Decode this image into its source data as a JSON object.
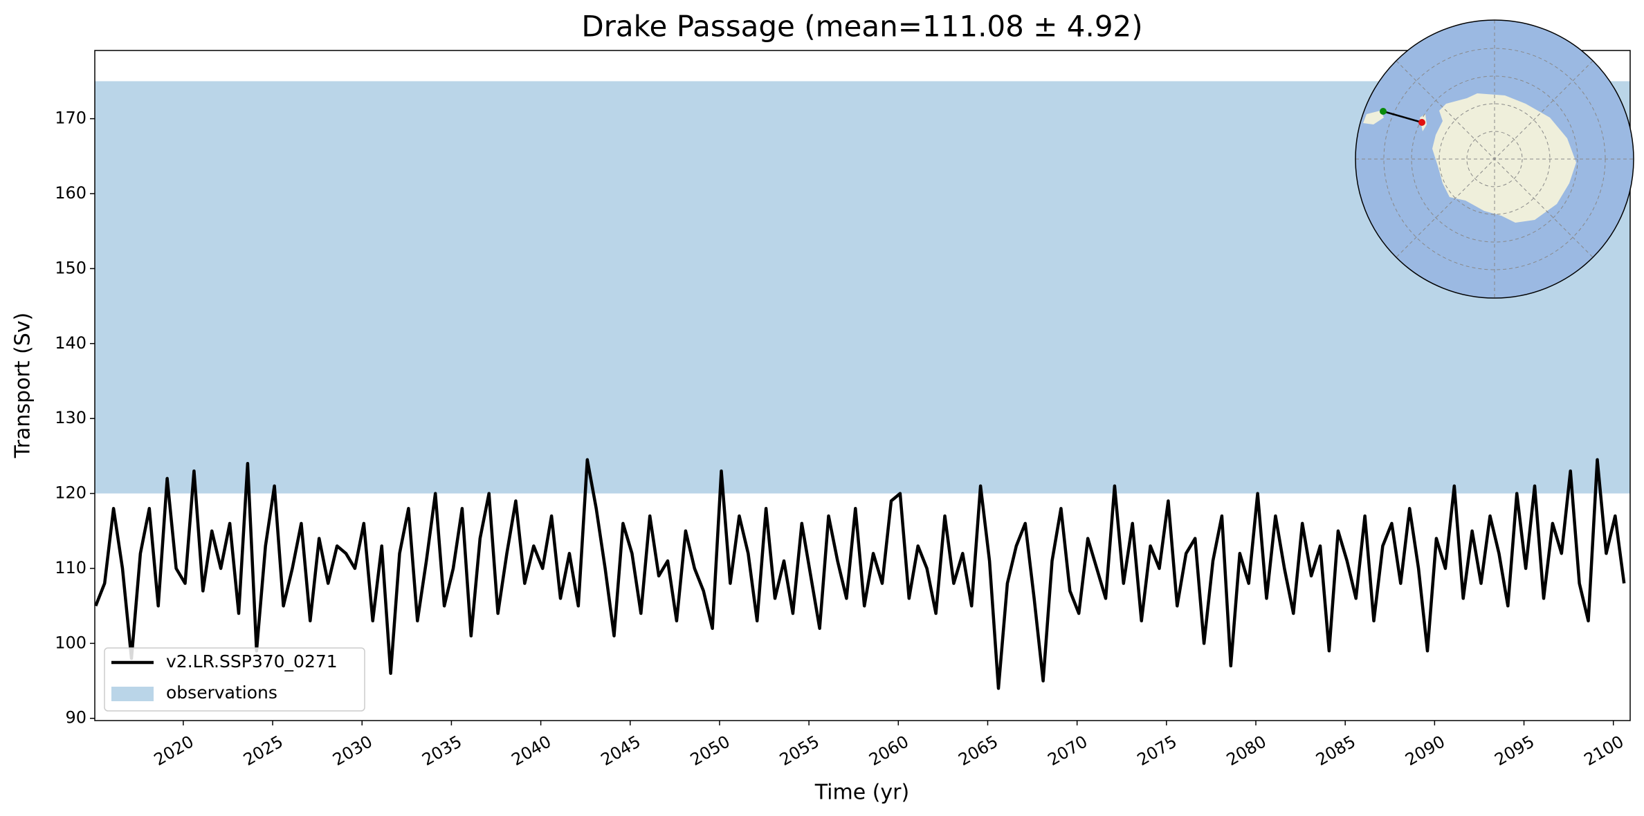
{
  "chart_data": {
    "type": "line",
    "title": "Drake Passage (mean=111.08 ± 4.92)",
    "xlabel": "Time (yr)",
    "ylabel": "Transport (Sv)",
    "xlim": [
      2015.05,
      2100.94
    ],
    "ylim": [
      89.7,
      179.1
    ],
    "xticks": [
      2020,
      2025,
      2030,
      2035,
      2040,
      2045,
      2050,
      2055,
      2060,
      2065,
      2070,
      2075,
      2080,
      2085,
      2090,
      2095,
      2100
    ],
    "yticks": [
      90,
      100,
      110,
      120,
      130,
      140,
      150,
      160,
      170
    ],
    "legend": "lower left",
    "band": {
      "name": "observations",
      "range": [
        120,
        175
      ],
      "color": "#bad5e8"
    },
    "x": [
      2015.1,
      2015.6,
      2016.1,
      2016.6,
      2017.1,
      2017.6,
      2018.1,
      2018.6,
      2019.1,
      2019.6,
      2020.1,
      2020.6,
      2021.1,
      2021.6,
      2022.1,
      2022.6,
      2023.1,
      2023.6,
      2024.1,
      2024.6,
      2025.1,
      2025.6,
      2026.1,
      2026.6,
      2027.1,
      2027.6,
      2028.1,
      2028.6,
      2029.1,
      2029.6,
      2030.1,
      2030.6,
      2031.1,
      2031.6,
      2032.1,
      2032.6,
      2033.1,
      2033.6,
      2034.1,
      2034.6,
      2035.1,
      2035.6,
      2036.1,
      2036.6,
      2037.1,
      2037.6,
      2038.1,
      2038.6,
      2039.1,
      2039.6,
      2040.1,
      2040.6,
      2041.1,
      2041.6,
      2042.1,
      2042.6,
      2043.1,
      2043.6,
      2044.1,
      2044.6,
      2045.1,
      2045.6,
      2046.1,
      2046.6,
      2047.1,
      2047.6,
      2048.1,
      2048.6,
      2049.1,
      2049.6,
      2050.1,
      2050.6,
      2051.1,
      2051.6,
      2052.1,
      2052.6,
      2053.1,
      2053.6,
      2054.1,
      2054.6,
      2055.1,
      2055.6,
      2056.1,
      2056.6,
      2057.1,
      2057.6,
      2058.1,
      2058.6,
      2059.1,
      2059.6,
      2060.1,
      2060.6,
      2061.1,
      2061.6,
      2062.1,
      2062.6,
      2063.1,
      2063.6,
      2064.1,
      2064.6,
      2065.1,
      2065.6,
      2066.1,
      2066.6,
      2067.1,
      2067.6,
      2068.1,
      2068.6,
      2069.1,
      2069.6,
      2070.1,
      2070.6,
      2071.1,
      2071.6,
      2072.1,
      2072.6,
      2073.1,
      2073.6,
      2074.1,
      2074.6,
      2075.1,
      2075.6,
      2076.1,
      2076.6,
      2077.1,
      2077.6,
      2078.1,
      2078.6,
      2079.1,
      2079.6,
      2080.1,
      2080.6,
      2081.1,
      2081.6,
      2082.1,
      2082.6,
      2083.1,
      2083.6,
      2084.1,
      2084.6,
      2085.1,
      2085.6,
      2086.1,
      2086.6,
      2087.1,
      2087.6,
      2088.1,
      2088.6,
      2089.1,
      2089.6,
      2090.1,
      2090.6,
      2091.1,
      2091.6,
      2092.1,
      2092.6,
      2093.1,
      2093.6,
      2094.1,
      2094.6,
      2095.1,
      2095.6,
      2096.1,
      2096.6,
      2097.1,
      2097.6,
      2098.1,
      2098.6,
      2099.1,
      2099.6,
      2100.1,
      2100.6
    ],
    "series": [
      {
        "name": "v2.LR.SSP370_0271",
        "color": "#000000",
        "values": [
          105,
          108,
          118,
          110,
          98,
          112,
          118,
          105,
          122,
          110,
          108,
          123,
          107,
          115,
          110,
          116,
          104,
          124,
          99,
          113,
          121,
          105,
          110,
          116,
          103,
          114,
          108,
          113,
          112,
          110,
          116,
          103,
          113,
          96,
          112,
          118,
          103,
          111,
          120,
          105,
          110,
          118,
          101,
          114,
          120,
          104,
          112,
          119,
          108,
          113,
          110,
          117,
          106,
          112,
          105,
          124.5,
          118,
          110,
          101,
          116,
          112,
          104,
          117,
          109,
          111,
          103,
          115,
          110,
          107,
          102,
          123,
          108,
          117,
          112,
          103,
          118,
          106,
          111,
          104,
          116,
          109,
          102,
          117,
          111,
          106,
          118,
          105,
          112,
          108,
          119,
          120,
          106,
          113,
          110,
          104,
          117,
          108,
          112,
          105,
          121,
          111,
          94,
          108,
          113,
          116,
          106,
          95,
          111,
          118,
          107,
          104,
          114,
          110,
          106,
          121,
          108,
          116,
          103,
          113,
          110,
          119,
          105,
          112,
          114,
          100,
          111,
          117,
          97,
          112,
          108,
          120,
          106,
          117,
          110,
          104,
          116,
          109,
          113,
          99,
          115,
          111,
          106,
          117,
          103,
          113,
          116,
          108,
          118,
          110,
          99,
          114,
          110,
          121,
          106,
          115,
          108,
          117,
          112,
          105,
          120,
          110,
          121,
          106,
          116,
          112,
          123,
          108,
          103,
          124.5,
          112,
          117,
          108
        ]
      }
    ]
  }
}
